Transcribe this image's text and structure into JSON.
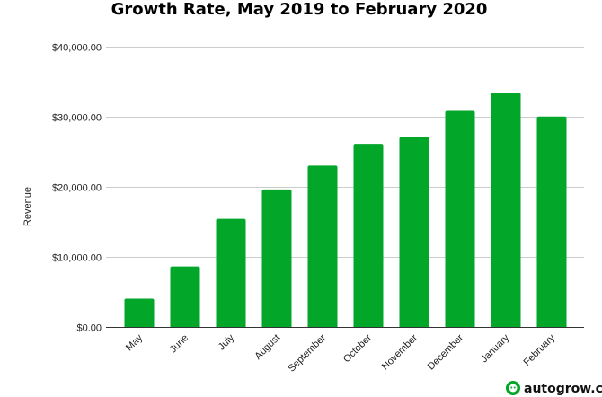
{
  "chart_data": {
    "type": "bar",
    "title": "Growth Rate, May 2019 to February 2020",
    "xlabel": "",
    "ylabel": "Revenue",
    "categories": [
      "May",
      "June",
      "July",
      "August",
      "September",
      "October",
      "November",
      "December",
      "January",
      "February"
    ],
    "values": [
      4100,
      8700,
      15500,
      19700,
      23100,
      26200,
      27200,
      30900,
      33500,
      30100
    ],
    "ylim": [
      0,
      40000
    ],
    "yticks": [
      0,
      10000,
      20000,
      30000,
      40000
    ],
    "ytick_labels": [
      "$0.00",
      "$10,000.00",
      "$20,000.00",
      "$30,000.00",
      "$40,000.00"
    ],
    "grid": true,
    "legend": "none",
    "bar_color": "#02a629"
  },
  "watermark": {
    "text": "autogrow.co",
    "icon": "autogrow-logo-icon"
  }
}
